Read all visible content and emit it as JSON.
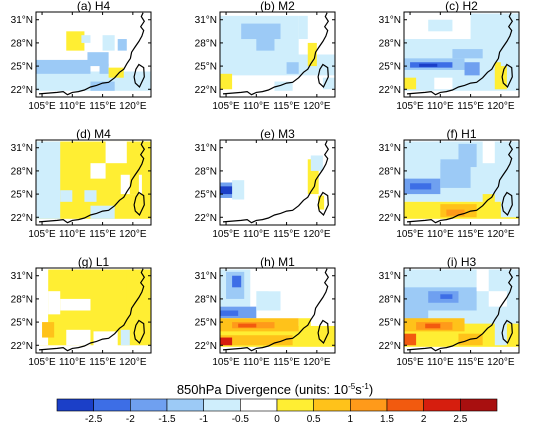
{
  "figure": {
    "panels": [
      {
        "label": "(a) H4"
      },
      {
        "label": "(b) M2"
      },
      {
        "label": "(c) H2"
      },
      {
        "label": "(d) M4"
      },
      {
        "label": "(e) M3"
      },
      {
        "label": "(f) H1"
      },
      {
        "label": "(g) L1"
      },
      {
        "label": "(h) M1"
      },
      {
        "label": "(i) H3"
      }
    ],
    "lat_ticks": [
      "31°N",
      "28°N",
      "25°N",
      "22°N"
    ],
    "lon_ticks": [
      "105°E",
      "110°E",
      "115°E",
      "120°E"
    ],
    "colorbar": {
      "title_main": "850hPa Divergence (units: 10",
      "title_exp1": "-5",
      "title_mid": "s",
      "title_exp2": "-1",
      "title_end": ")",
      "labels": [
        "-2.5",
        "-2",
        "-1.5",
        "-1",
        "-0.5",
        "0",
        "0.5",
        "1",
        "1.5",
        "2",
        "2.5"
      ],
      "colors": [
        "#1b3fc8",
        "#3d6ee6",
        "#6fa0f0",
        "#9ccaf6",
        "#cfeefc",
        "#ffffff",
        "#ffee33",
        "#ffc21a",
        "#ff9a1a",
        "#f25a0f",
        "#d61e0e",
        "#a80f0f"
      ]
    }
  }
}
